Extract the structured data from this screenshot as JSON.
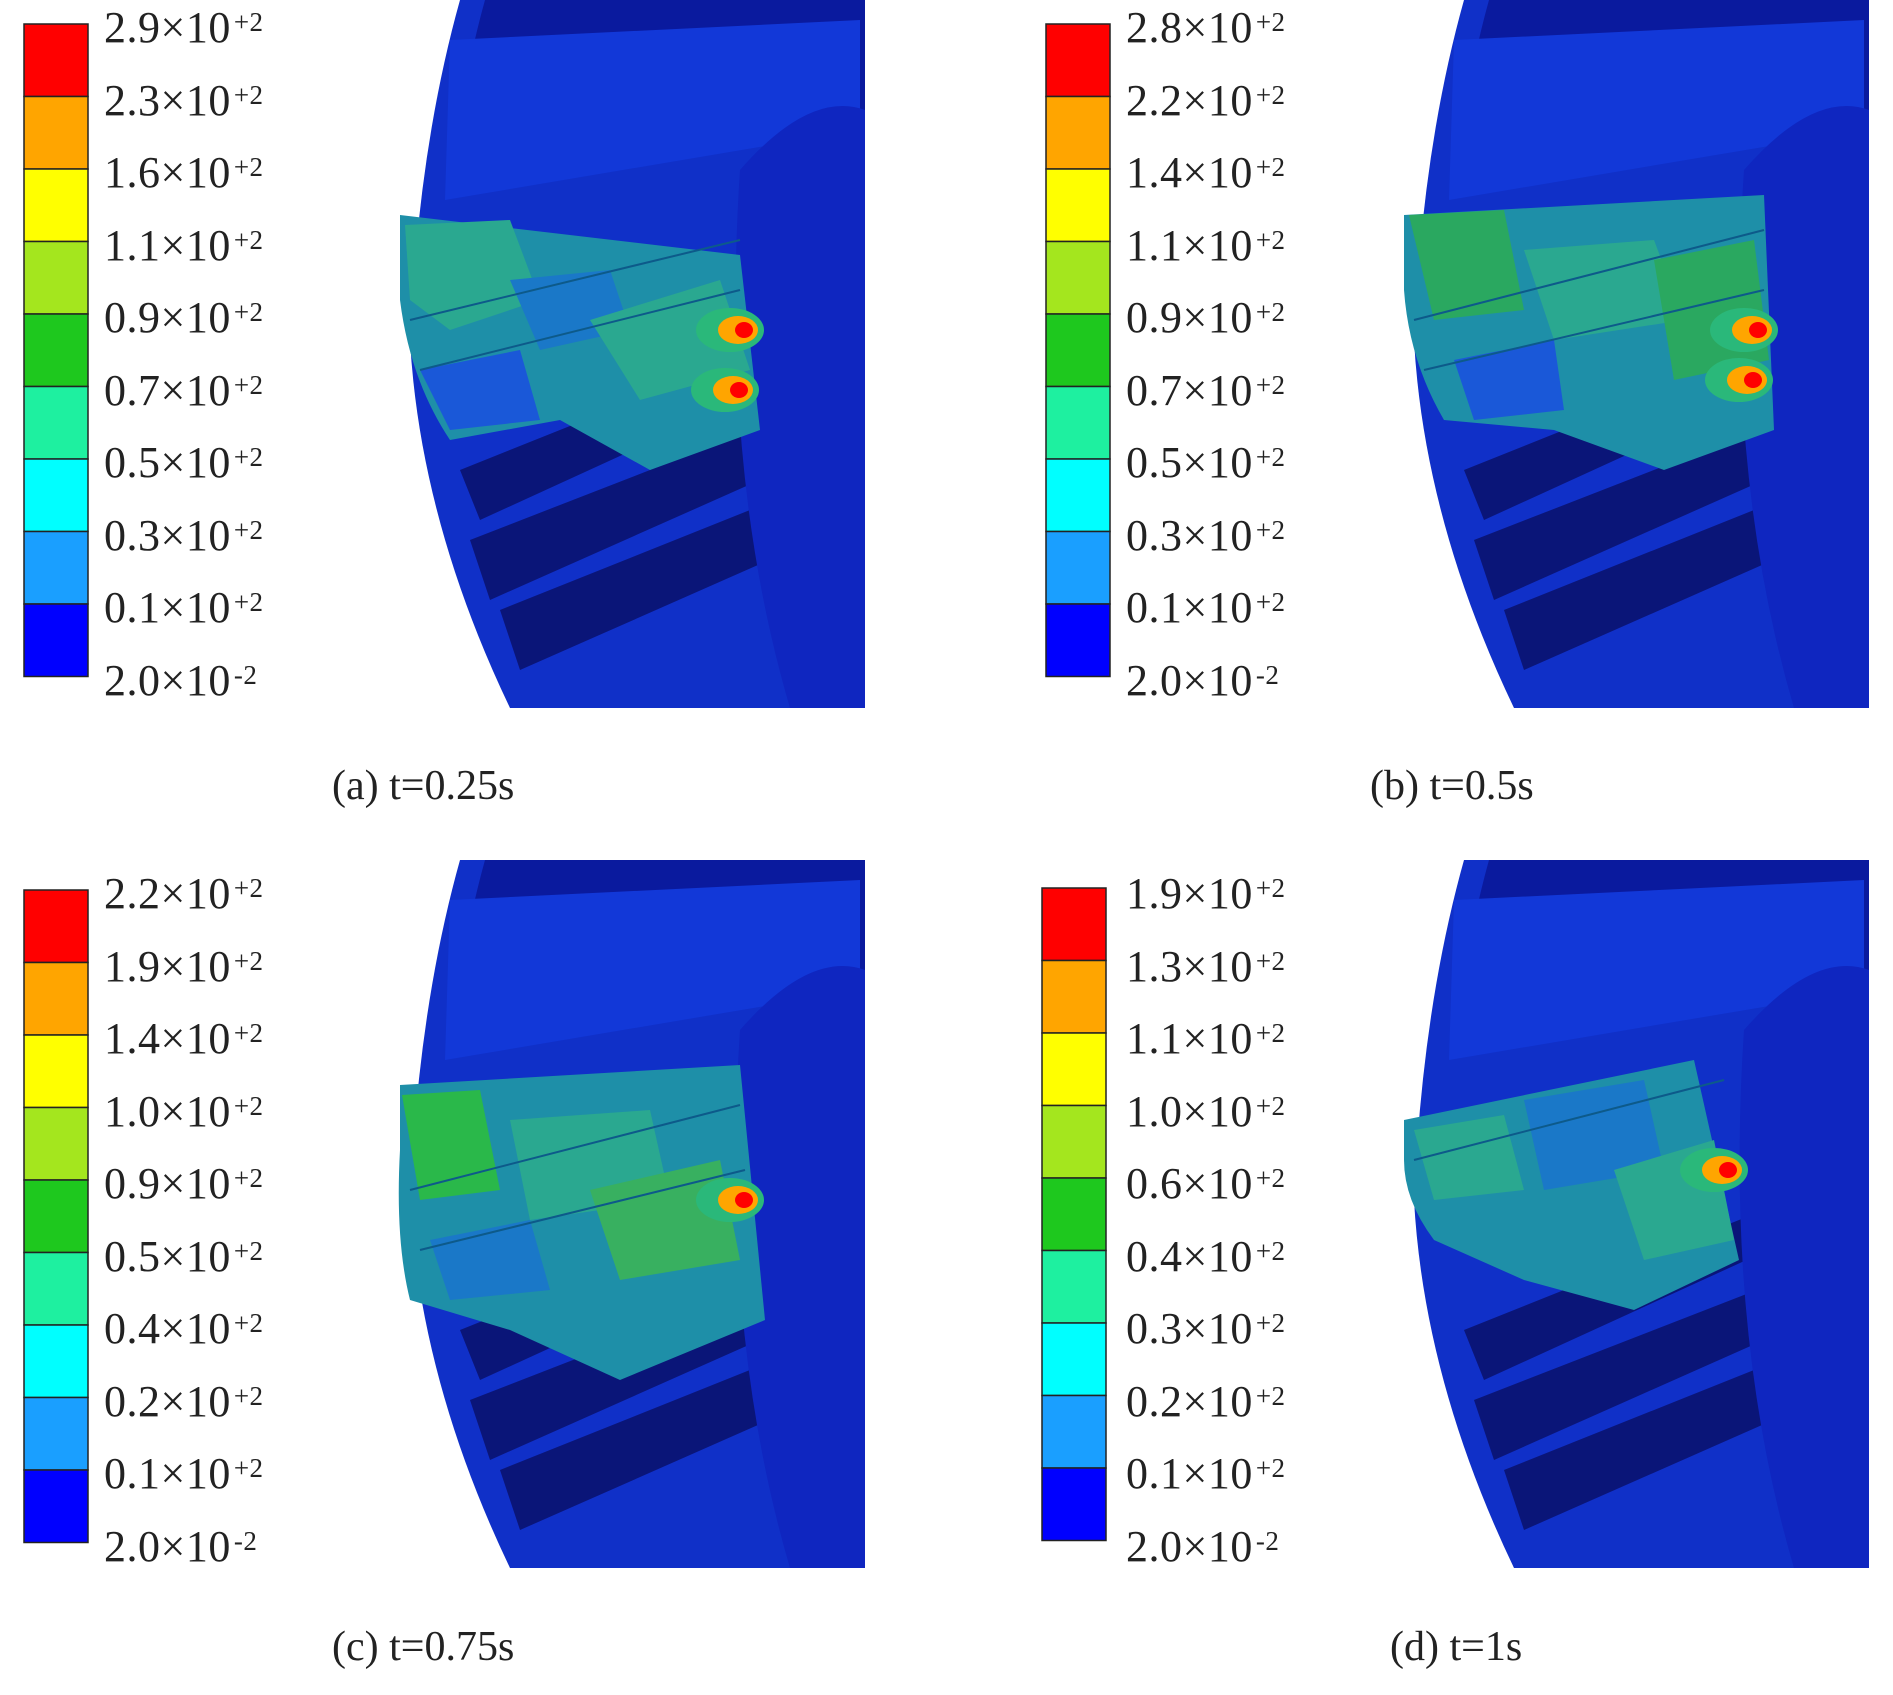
{
  "colors": {
    "levels": [
      "#0000ff",
      "#1a9fff",
      "#00ffff",
      "#1ef0a0",
      "#1ec81e",
      "#a4e61e",
      "#ffff00",
      "#ffa500",
      "#ff0000"
    ],
    "model_dark": "#0a1a9e",
    "model_base": "#1030c8",
    "model_shadow": "#0a1578",
    "teal": "#1e8fa8",
    "cyan_band": "#1aa0c8",
    "green_band": "#2ab87a"
  },
  "panels": [
    {
      "caption": "(a) t=0.25s",
      "legend": [
        {
          "mantissa": "2.9×10",
          "exp": "+2"
        },
        {
          "mantissa": "2.3×10",
          "exp": "+2"
        },
        {
          "mantissa": "1.6×10",
          "exp": "+2"
        },
        {
          "mantissa": "1.1×10",
          "exp": "+2"
        },
        {
          "mantissa": "0.9×10",
          "exp": "+2"
        },
        {
          "mantissa": "0.7×10",
          "exp": "+2"
        },
        {
          "mantissa": "0.5×10",
          "exp": "+2"
        },
        {
          "mantissa": "0.3×10",
          "exp": "+2"
        },
        {
          "mantissa": "0.1×10",
          "exp": "+2"
        },
        {
          "mantissa": "2.0×10",
          "exp": "-2"
        }
      ]
    },
    {
      "caption": "(b) t=0.5s",
      "legend": [
        {
          "mantissa": "2.8×10",
          "exp": "+2"
        },
        {
          "mantissa": "2.2×10",
          "exp": "+2"
        },
        {
          "mantissa": "1.4×10",
          "exp": "+2"
        },
        {
          "mantissa": "1.1×10",
          "exp": "+2"
        },
        {
          "mantissa": "0.9×10",
          "exp": "+2"
        },
        {
          "mantissa": "0.7×10",
          "exp": "+2"
        },
        {
          "mantissa": "0.5×10",
          "exp": "+2"
        },
        {
          "mantissa": "0.3×10",
          "exp": "+2"
        },
        {
          "mantissa": "0.1×10",
          "exp": "+2"
        },
        {
          "mantissa": "2.0×10",
          "exp": "-2"
        }
      ]
    },
    {
      "caption": "(c) t=0.75s",
      "legend": [
        {
          "mantissa": "2.2×10",
          "exp": "+2"
        },
        {
          "mantissa": "1.9×10",
          "exp": "+2"
        },
        {
          "mantissa": "1.4×10",
          "exp": "+2"
        },
        {
          "mantissa": "1.0×10",
          "exp": "+2"
        },
        {
          "mantissa": "0.9×10",
          "exp": "+2"
        },
        {
          "mantissa": "0.5×10",
          "exp": "+2"
        },
        {
          "mantissa": "0.4×10",
          "exp": "+2"
        },
        {
          "mantissa": "0.2×10",
          "exp": "+2"
        },
        {
          "mantissa": "0.1×10",
          "exp": "+2"
        },
        {
          "mantissa": "2.0×10",
          "exp": "-2"
        }
      ]
    },
    {
      "caption": "(d) t=1s",
      "legend": [
        {
          "mantissa": "1.9×10",
          "exp": "+2"
        },
        {
          "mantissa": "1.3×10",
          "exp": "+2"
        },
        {
          "mantissa": "1.1×10",
          "exp": "+2"
        },
        {
          "mantissa": "1.0×10",
          "exp": "+2"
        },
        {
          "mantissa": "0.6×10",
          "exp": "+2"
        },
        {
          "mantissa": "0.4×10",
          "exp": "+2"
        },
        {
          "mantissa": "0.3×10",
          "exp": "+2"
        },
        {
          "mantissa": "0.2×10",
          "exp": "+2"
        },
        {
          "mantissa": "0.1×10",
          "exp": "+2"
        },
        {
          "mantissa": "2.0×10",
          "exp": "-2"
        }
      ]
    }
  ]
}
